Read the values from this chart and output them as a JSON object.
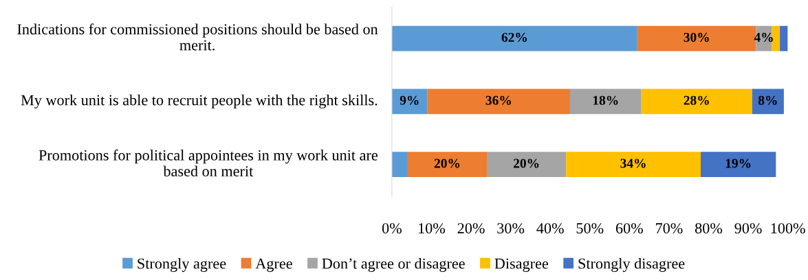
{
  "chart_data": {
    "type": "bar",
    "orientation": "horizontal",
    "stacked": true,
    "categories": [
      "Indications for commissioned positions should be based on merit.",
      "My work unit is able to recruit people with the right skills.",
      "Promotions for political appointees in my work unit are based on merit"
    ],
    "series": [
      {
        "name": "Strongly agree",
        "color": "#5b9bd5",
        "values": [
          62,
          9,
          4
        ],
        "value_labels": [
          "62%",
          "9%",
          null
        ]
      },
      {
        "name": "Agree",
        "color": "#ed7d31",
        "values": [
          30,
          36,
          20
        ],
        "value_labels": [
          "30%",
          "36%",
          "20%"
        ]
      },
      {
        "name": "Don’t agree or disagree",
        "color": "#a5a5a5",
        "values": [
          4,
          18,
          20
        ],
        "value_labels": [
          "4%",
          "18%",
          "20%"
        ]
      },
      {
        "name": "Disagree",
        "color": "#ffc000",
        "values": [
          2,
          28,
          34
        ],
        "value_labels": [
          null,
          "28%",
          "34%"
        ]
      },
      {
        "name": "Strongly disagree",
        "color": "#4472c4",
        "values": [
          2,
          8,
          19
        ],
        "value_labels": [
          null,
          "8%",
          "19%"
        ]
      }
    ],
    "xlim": [
      0,
      100
    ],
    "xticks": [
      {
        "value": 0,
        "label": "0%"
      },
      {
        "value": 10,
        "label": "10%"
      },
      {
        "value": 20,
        "label": "20%"
      },
      {
        "value": 30,
        "label": "30%"
      },
      {
        "value": 40,
        "label": "40%"
      },
      {
        "value": 50,
        "label": "50%"
      },
      {
        "value": 60,
        "label": "60%"
      },
      {
        "value": 70,
        "label": "70%"
      },
      {
        "value": 80,
        "label": "80%"
      },
      {
        "value": 90,
        "label": "90%"
      },
      {
        "value": 100,
        "label": "100%"
      }
    ],
    "grid": false,
    "legend": "bottom"
  }
}
